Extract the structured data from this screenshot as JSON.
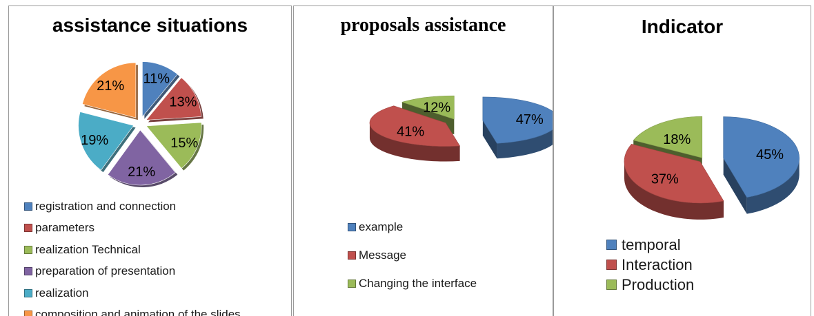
{
  "chart_data": [
    {
      "type": "pie",
      "title": "assistance situations",
      "slices": [
        {
          "name": "registration and connection",
          "value": 11,
          "label": "11%",
          "color": "#4f81bd"
        },
        {
          "name": "parameters",
          "value": 13,
          "label": "13%",
          "color": "#c0504d"
        },
        {
          "name": "realization Technical",
          "value": 15,
          "label": "15%",
          "color": "#9bbb59"
        },
        {
          "name": "preparation of presentation",
          "value": 21,
          "label": "21%",
          "color": "#8064a2"
        },
        {
          "name": "realization",
          "value": 19,
          "label": "19%",
          "color": "#4bacc6"
        },
        {
          "name": "composition and animation of the slides",
          "value": 21,
          "label": "21%",
          "color": "#f79646"
        }
      ],
      "legend_position": "bottom"
    },
    {
      "type": "pie",
      "title": "proposals assistance",
      "style": "3d",
      "slices": [
        {
          "name": "example",
          "value": 47,
          "label": "47%",
          "color": "#4f81bd"
        },
        {
          "name": "Message",
          "value": 41,
          "label": "41%",
          "color": "#c0504d"
        },
        {
          "name": "Changing the interface",
          "value": 12,
          "label": "12%",
          "color": "#9bbb59"
        }
      ],
      "legend_position": "bottom"
    },
    {
      "type": "pie",
      "title": "Indicator",
      "style": "3d",
      "slices": [
        {
          "name": "temporal",
          "value": 45,
          "label": "45%",
          "color": "#4f81bd"
        },
        {
          "name": "Interaction",
          "value": 37,
          "label": "37%",
          "color": "#c0504d"
        },
        {
          "name": "Production",
          "value": 18,
          "label": "18%",
          "color": "#9bbb59"
        }
      ],
      "legend_position": "bottom"
    }
  ]
}
